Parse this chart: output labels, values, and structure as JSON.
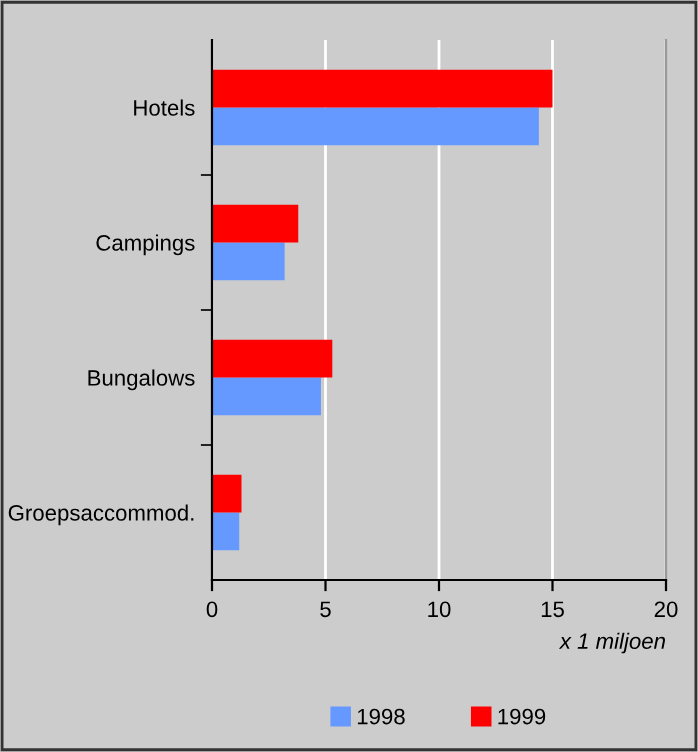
{
  "chart_data": {
    "type": "bar",
    "orientation": "horizontal",
    "categories": [
      "Hotels",
      "Campings",
      "Bungalows",
      "Groepsaccommod."
    ],
    "series": [
      {
        "name": "1998",
        "color": "#6699ff",
        "values": [
          14.4,
          3.2,
          4.8,
          1.2
        ]
      },
      {
        "name": "1999",
        "color": "#ff0000",
        "values": [
          15.0,
          3.8,
          5.3,
          1.3
        ]
      }
    ],
    "xlim": [
      0,
      20
    ],
    "xticks": [
      0,
      5,
      10,
      15,
      20
    ],
    "xlabel": "x 1 miljoen",
    "grid": "x",
    "legend": "bottom"
  }
}
